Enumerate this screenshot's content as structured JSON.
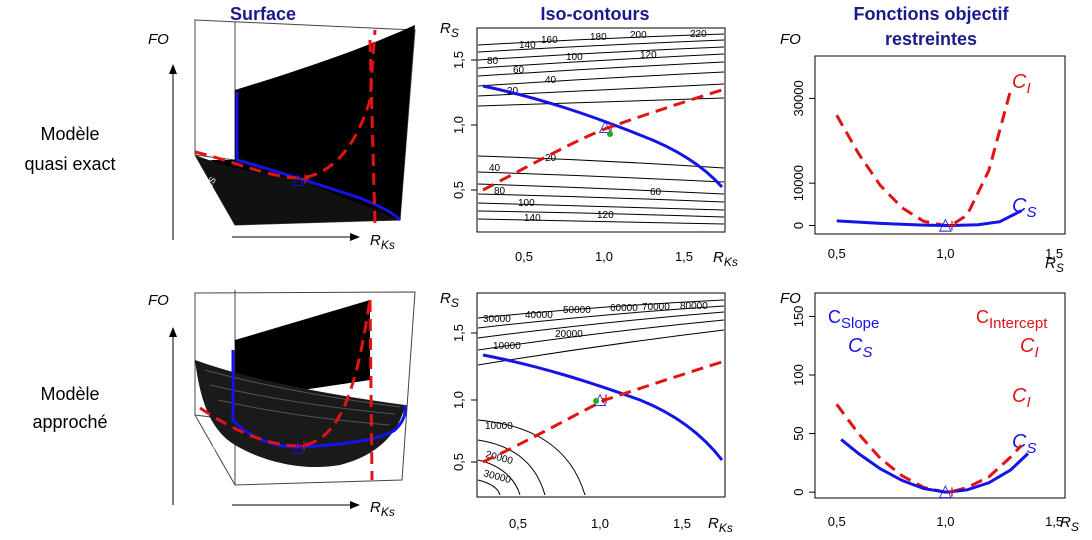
{
  "colors": {
    "header": "#1a1a8c",
    "blue": "#1414e6",
    "red": "#e01414",
    "green": "#22aa22",
    "black": "#000000"
  },
  "headers": {
    "surface": "Surface",
    "iso": "Iso-contours",
    "fo_line1": "Fonctions objectif",
    "fo_line2": "restreintes"
  },
  "rows": {
    "exact": {
      "label_line1": "Modèle",
      "label_line2": "quasi exact"
    },
    "approx": {
      "label_line1": "Modèle",
      "label_line2": "approché"
    }
  },
  "axis": {
    "fo": "FO",
    "rks": "R",
    "rks_sub": "Ks",
    "rs": "R",
    "rs_sub": "S",
    "rs_small": "RS"
  },
  "ticks": {
    "x_iso": [
      "0,5",
      "1,0",
      "1,5"
    ],
    "y_iso": [
      "0,5",
      "1,0",
      "1,5"
    ],
    "x_fo": [
      "0,5",
      "1,0",
      "1,5"
    ],
    "y_fo_top": [
      "0",
      "10000",
      "30000"
    ],
    "y_fo_bottom": [
      "0",
      "50",
      "100",
      "150"
    ]
  },
  "curve_labels": {
    "ci": "C",
    "ci_sub": "I",
    "cs": "C",
    "cs_sub": "S",
    "cslope": "C",
    "cslope_sub": "Slope",
    "cintercept": "C",
    "cintercept_sub": "Intercept"
  },
  "contour_labels_top": [
    "20",
    "40",
    "60",
    "80",
    "100",
    "120",
    "140",
    "160",
    "180",
    "200",
    "220",
    "20",
    "40",
    "60",
    "80",
    "100",
    "120",
    "140"
  ],
  "contour_labels_bottom": [
    "10000",
    "20000",
    "30000",
    "40000",
    "50000",
    "60000",
    "70000",
    "80000",
    "10000",
    "20000",
    "30000"
  ],
  "chart_data": [
    {
      "type": "line",
      "panel": "Fonctions objectif restreintes (Modèle quasi exact)",
      "xlabel": "RS",
      "ylabel": "FO",
      "xlim": [
        0.4,
        1.55
      ],
      "ylim": [
        -2000,
        40000
      ],
      "series": [
        {
          "name": "CI",
          "x": [
            0.5,
            0.6,
            0.7,
            0.8,
            0.9,
            1.0,
            1.03,
            1.1,
            1.2,
            1.3
          ],
          "values": [
            26000,
            17000,
            9500,
            4200,
            1000,
            0,
            150,
            2500,
            13000,
            32000
          ]
        },
        {
          "name": "CS",
          "x": [
            0.5,
            0.7,
            0.9,
            1.0,
            1.03,
            1.15,
            1.25,
            1.35
          ],
          "values": [
            1100,
            500,
            100,
            0,
            0,
            200,
            900,
            3500
          ]
        }
      ]
    },
    {
      "type": "line",
      "panel": "Fonctions objectif restreintes (Modèle approché)",
      "xlabel": "RS",
      "ylabel": "FO",
      "xlim": [
        0.4,
        1.55
      ],
      "ylim": [
        -5,
        170
      ],
      "series": [
        {
          "name": "CI",
          "x": [
            0.5,
            0.6,
            0.7,
            0.8,
            0.9,
            1.0,
            1.03,
            1.1,
            1.2,
            1.3,
            1.35
          ],
          "values": [
            75,
            50,
            29,
            14,
            4,
            0,
            0.5,
            4,
            13,
            30,
            40
          ]
        },
        {
          "name": "CS",
          "x": [
            0.52,
            0.6,
            0.7,
            0.8,
            0.9,
            1.0,
            1.03,
            1.1,
            1.2,
            1.3,
            1.38
          ],
          "values": [
            45,
            33,
            20,
            10,
            3,
            0,
            0.3,
            2,
            8,
            19,
            33
          ]
        }
      ]
    }
  ]
}
